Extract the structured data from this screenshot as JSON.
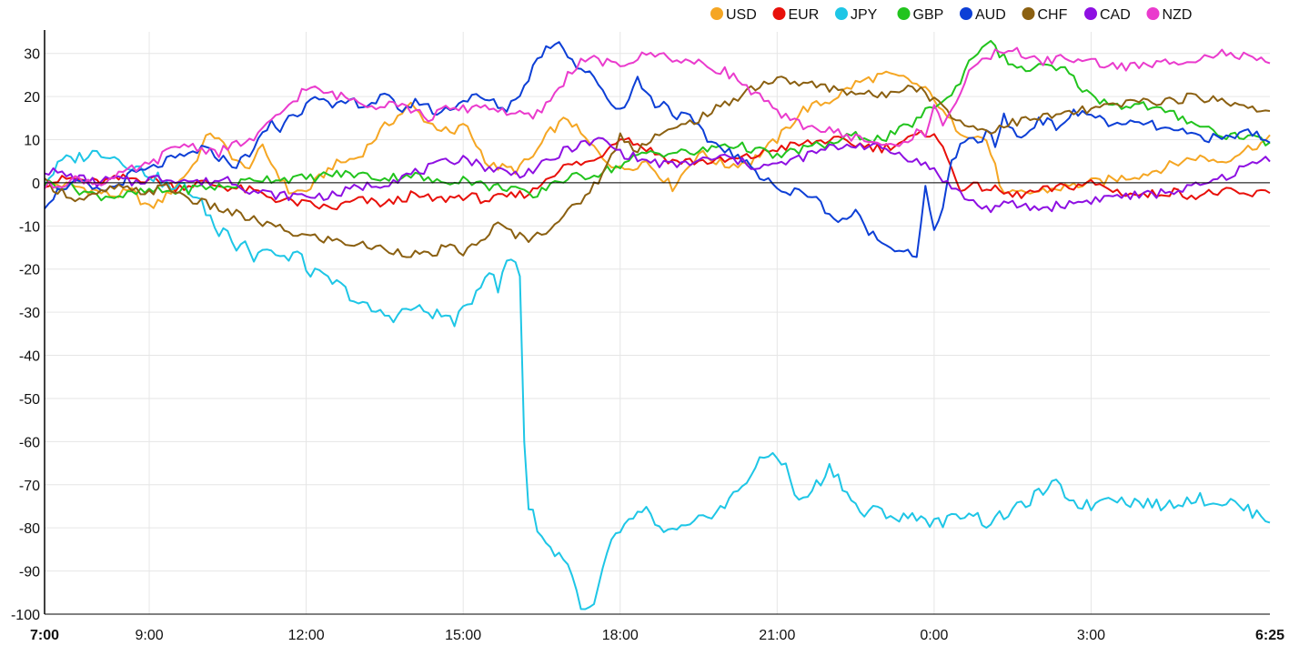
{
  "chart_data": {
    "type": "line",
    "title": "",
    "xlabel": "",
    "ylabel": "",
    "ylim": [
      -100,
      35
    ],
    "xlim": [
      0,
      1405
    ],
    "zero_line": true,
    "grid": true,
    "legend_position": "top-right",
    "y_ticks": [
      30,
      20,
      10,
      0,
      -10,
      -20,
      -30,
      -40,
      -50,
      -60,
      -70,
      -80,
      -90,
      -100
    ],
    "x_ticks": [
      {
        "t": 0,
        "label": "7:00",
        "bold": true
      },
      {
        "t": 120,
        "label": "9:00"
      },
      {
        "t": 300,
        "label": "12:00"
      },
      {
        "t": 480,
        "label": "15:00"
      },
      {
        "t": 660,
        "label": "18:00"
      },
      {
        "t": 840,
        "label": "21:00"
      },
      {
        "t": 1020,
        "label": "0:00"
      },
      {
        "t": 1200,
        "label": "3:00"
      },
      {
        "t": 1405,
        "label": "6:25",
        "bold": true
      }
    ],
    "series": [
      {
        "name": "USD",
        "color": "#f5a623",
        "t": [
          0,
          40,
          80,
          100,
          120,
          140,
          170,
          190,
          230,
          250,
          280,
          300,
          330,
          360,
          390,
          420,
          440,
          470,
          480,
          510,
          540,
          560,
          580,
          600,
          620,
          640,
          660,
          690,
          720,
          750,
          780,
          810,
          840,
          870,
          900,
          930,
          960,
          990,
          1020,
          1030,
          1050,
          1080,
          1100,
          1140,
          1170,
          1200,
          1230,
          1260,
          1290,
          1320,
          1350,
          1380,
          1405
        ],
        "v": [
          0,
          -1,
          -3,
          -2,
          -6,
          -3,
          4,
          12,
          3,
          8,
          -2,
          -2,
          4,
          6,
          13,
          18,
          14,
          11,
          14,
          4,
          3,
          6,
          12,
          15,
          10,
          6,
          3,
          5,
          -1,
          7,
          4,
          5,
          10,
          17,
          19,
          23,
          25,
          24,
          20,
          16,
          12,
          10,
          -3,
          -2,
          -1,
          0,
          1,
          2,
          4,
          6,
          5,
          8,
          10
        ]
      },
      {
        "name": "EUR",
        "color": "#e8100a",
        "t": [
          0,
          30,
          60,
          90,
          120,
          150,
          180,
          210,
          240,
          270,
          300,
          330,
          360,
          390,
          420,
          450,
          480,
          510,
          540,
          560,
          580,
          600,
          630,
          660,
          690,
          720,
          750,
          780,
          810,
          840,
          870,
          900,
          930,
          960,
          990,
          1020,
          1050,
          1080,
          1110,
          1140,
          1170,
          1200,
          1230,
          1260,
          1290,
          1320,
          1350,
          1380,
          1405
        ],
        "v": [
          0,
          1,
          0,
          1,
          1,
          -1,
          0,
          -1,
          -2,
          -4,
          -5,
          -6,
          -4,
          -5,
          -3,
          -4,
          -3,
          -4,
          -3,
          -2,
          2,
          4,
          5,
          11,
          8,
          5,
          5,
          5,
          6,
          8,
          9,
          10,
          9,
          8,
          10,
          12,
          -1,
          -1,
          -3,
          -2,
          -1,
          0,
          -2,
          -3,
          -2,
          -3,
          -2,
          -3,
          -2
        ]
      },
      {
        "name": "JPY",
        "color": "#1ec6e6",
        "t": [
          0,
          20,
          40,
          60,
          70,
          90,
          110,
          130,
          150,
          160,
          170,
          180,
          190,
          200,
          210,
          220,
          230,
          240,
          250,
          260,
          270,
          280,
          290,
          300,
          310,
          320,
          340,
          360,
          380,
          400,
          420,
          440,
          460,
          470,
          480,
          490,
          500,
          510,
          520,
          530,
          540,
          545,
          550,
          555,
          560,
          570,
          580,
          590,
          600,
          610,
          620,
          630,
          640,
          650,
          660,
          670,
          680,
          690,
          700,
          720,
          740,
          760,
          780,
          800,
          820,
          830,
          840,
          850,
          860,
          870,
          880,
          890,
          900,
          910,
          920,
          930,
          940,
          950,
          960,
          980,
          1000,
          1020,
          1040,
          1060,
          1080,
          1100,
          1120,
          1140,
          1160,
          1180,
          1200,
          1220,
          1240,
          1260,
          1280,
          1300,
          1320,
          1340,
          1360,
          1380,
          1395,
          1405
        ],
        "v": [
          0,
          5,
          6,
          7,
          7,
          5,
          3,
          1,
          -2,
          0,
          -3,
          -5,
          -8,
          -12,
          -10,
          -15,
          -13,
          -18,
          -15,
          -16,
          -18,
          -17,
          -16,
          -20,
          -21,
          -22,
          -24,
          -28,
          -30,
          -31,
          -29,
          -30,
          -31,
          -32,
          -30,
          -27,
          -23,
          -20,
          -25,
          -18,
          -18,
          -21,
          -60,
          -75,
          -77,
          -82,
          -85,
          -86,
          -88,
          -95,
          -100,
          -98,
          -90,
          -83,
          -82,
          -78,
          -77,
          -76,
          -80,
          -81,
          -80,
          -77,
          -75,
          -70,
          -65,
          -63,
          -63,
          -66,
          -72,
          -74,
          -71,
          -69,
          -66,
          -68,
          -72,
          -75,
          -77,
          -76,
          -76,
          -78,
          -77,
          -79,
          -78,
          -76,
          -79,
          -77,
          -75,
          -72,
          -70,
          -74,
          -75,
          -72,
          -74,
          -74,
          -75,
          -74,
          -73,
          -74,
          -74,
          -76,
          -77,
          -78,
          -77
        ]
      },
      {
        "name": "GBP",
        "color": "#22c41e",
        "t": [
          0,
          30,
          60,
          90,
          120,
          150,
          180,
          210,
          240,
          270,
          300,
          330,
          360,
          390,
          420,
          450,
          480,
          510,
          540,
          560,
          580,
          600,
          630,
          660,
          690,
          720,
          750,
          780,
          810,
          840,
          870,
          900,
          930,
          960,
          990,
          1020,
          1040,
          1060,
          1080,
          1100,
          1120,
          1140,
          1170,
          1200,
          1230,
          1260,
          1290,
          1320,
          1350,
          1380,
          1405
        ],
        "v": [
          0,
          -1,
          -3,
          -3,
          -2,
          -2,
          -1,
          -1,
          1,
          1,
          1,
          2,
          2,
          1,
          2,
          0,
          1,
          -1,
          -1,
          -4,
          0,
          1,
          2,
          4,
          7,
          7,
          7,
          9,
          8,
          6,
          8,
          9,
          11,
          10,
          13,
          18,
          20,
          28,
          33,
          29,
          26,
          27,
          26,
          20,
          18,
          18,
          16,
          14,
          11,
          11,
          9
        ]
      },
      {
        "name": "AUD",
        "color": "#0d3fd6",
        "t": [
          0,
          10,
          20,
          40,
          60,
          80,
          100,
          120,
          140,
          160,
          180,
          200,
          220,
          240,
          260,
          270,
          280,
          290,
          300,
          310,
          330,
          350,
          370,
          390,
          410,
          430,
          450,
          470,
          490,
          510,
          530,
          540,
          550,
          560,
          570,
          580,
          590,
          600,
          610,
          620,
          630,
          640,
          650,
          660,
          670,
          680,
          690,
          700,
          710,
          720,
          740,
          760,
          780,
          800,
          820,
          830,
          840,
          850,
          860,
          870,
          880,
          890,
          900,
          910,
          920,
          930,
          940,
          950,
          960,
          970,
          980,
          990,
          1000,
          1010,
          1020,
          1030,
          1040,
          1050,
          1060,
          1070,
          1080,
          1090,
          1100,
          1120,
          1140,
          1160,
          1180,
          1200,
          1230,
          1260,
          1290,
          1320,
          1350,
          1380,
          1395,
          1405
        ],
        "v": [
          -5,
          -3,
          -1,
          0,
          -2,
          -1,
          2,
          3,
          5,
          6,
          8,
          6,
          4,
          8,
          14,
          12,
          16,
          15,
          19,
          21,
          17,
          19,
          18,
          20,
          17,
          19,
          16,
          18,
          20,
          19,
          17,
          20,
          22,
          27,
          30,
          32,
          33,
          30,
          27,
          26,
          24,
          22,
          18,
          17,
          20,
          24,
          21,
          18,
          19,
          16,
          15,
          10,
          8,
          5,
          2,
          1,
          -1,
          -3,
          -2,
          -2,
          -3,
          -5,
          -7,
          -9,
          -8,
          -7,
          -10,
          -12,
          -14,
          -14,
          -16,
          -15,
          -18,
          -1,
          -12,
          -5,
          5,
          8,
          10,
          9,
          12,
          9,
          15,
          10,
          15,
          13,
          16,
          16,
          13,
          14,
          12,
          11,
          10,
          12,
          11,
          10
        ]
      },
      {
        "name": "CHF",
        "color": "#8b6011",
        "t": [
          0,
          20,
          40,
          60,
          80,
          100,
          120,
          140,
          170,
          200,
          230,
          260,
          290,
          320,
          350,
          380,
          410,
          440,
          460,
          480,
          500,
          510,
          520,
          530,
          540,
          560,
          580,
          600,
          620,
          640,
          650,
          660,
          670,
          680,
          700,
          720,
          750,
          780,
          810,
          840,
          870,
          900,
          930,
          960,
          990,
          1010,
          1020,
          1030,
          1040,
          1050,
          1080,
          1110,
          1140,
          1170,
          1200,
          1230,
          1260,
          1290,
          1320,
          1350,
          1380,
          1395,
          1405
        ],
        "v": [
          0,
          -2,
          -4,
          -3,
          -1,
          -2,
          -2,
          -1,
          -4,
          -6,
          -8,
          -10,
          -12,
          -13,
          -14,
          -15,
          -16,
          -17,
          -15,
          -16,
          -14,
          -11,
          -10,
          -11,
          -12,
          -13,
          -10,
          -7,
          -3,
          2,
          6,
          11,
          9,
          8,
          11,
          12,
          15,
          18,
          22,
          24,
          23,
          22,
          21,
          20,
          23,
          21,
          19,
          18,
          16,
          14,
          12,
          14,
          15,
          16,
          17,
          18,
          19,
          19,
          20,
          19,
          18,
          17,
          16
        ]
      },
      {
        "name": "CAD",
        "color": "#8e10e2",
        "t": [
          0,
          20,
          40,
          60,
          80,
          100,
          120,
          150,
          180,
          210,
          240,
          270,
          300,
          330,
          360,
          390,
          420,
          450,
          480,
          500,
          520,
          540,
          560,
          580,
          600,
          620,
          640,
          660,
          690,
          720,
          750,
          780,
          810,
          840,
          870,
          900,
          930,
          960,
          990,
          1020,
          1040,
          1060,
          1080,
          1110,
          1140,
          1170,
          1200,
          1230,
          1260,
          1290,
          1320,
          1350,
          1380,
          1395,
          1405
        ],
        "v": [
          3,
          2,
          1,
          0,
          1,
          0,
          1,
          1,
          0,
          1,
          -2,
          -3,
          -3,
          -3,
          -1,
          0,
          2,
          4,
          6,
          4,
          3,
          2,
          3,
          5,
          8,
          9,
          10,
          7,
          5,
          4,
          5,
          6,
          4,
          4,
          6,
          8,
          9,
          8,
          6,
          3,
          -1,
          -4,
          -6,
          -5,
          -6,
          -5,
          -4,
          -3,
          -3,
          -2,
          -1,
          1,
          4,
          5,
          6
        ]
      },
      {
        "name": "NZD",
        "color": "#ea3bcd",
        "t": [
          0,
          20,
          40,
          60,
          80,
          100,
          120,
          140,
          160,
          180,
          200,
          220,
          240,
          260,
          280,
          300,
          320,
          340,
          360,
          380,
          400,
          420,
          440,
          460,
          480,
          500,
          520,
          540,
          560,
          580,
          600,
          620,
          640,
          660,
          680,
          700,
          720,
          740,
          760,
          780,
          800,
          820,
          840,
          860,
          880,
          900,
          920,
          940,
          960,
          980,
          1000,
          1010,
          1020,
          1030,
          1040,
          1060,
          1080,
          1100,
          1120,
          1140,
          1170,
          1200,
          1230,
          1260,
          1290,
          1320,
          1350,
          1380,
          1395,
          1405
        ],
        "v": [
          -1,
          0,
          1,
          0,
          1,
          3,
          4,
          7,
          9,
          8,
          7,
          9,
          10,
          14,
          18,
          22,
          21,
          20,
          19,
          18,
          19,
          17,
          15,
          17,
          17,
          18,
          17,
          16,
          15,
          19,
          25,
          29,
          28,
          27,
          29,
          30,
          29,
          28,
          27,
          26,
          23,
          20,
          16,
          14,
          13,
          12,
          11,
          10,
          9,
          8,
          12,
          10,
          19,
          14,
          17,
          25,
          29,
          31,
          30,
          28,
          29,
          28,
          27,
          27,
          28,
          29,
          30,
          29,
          28,
          27
        ]
      }
    ]
  }
}
